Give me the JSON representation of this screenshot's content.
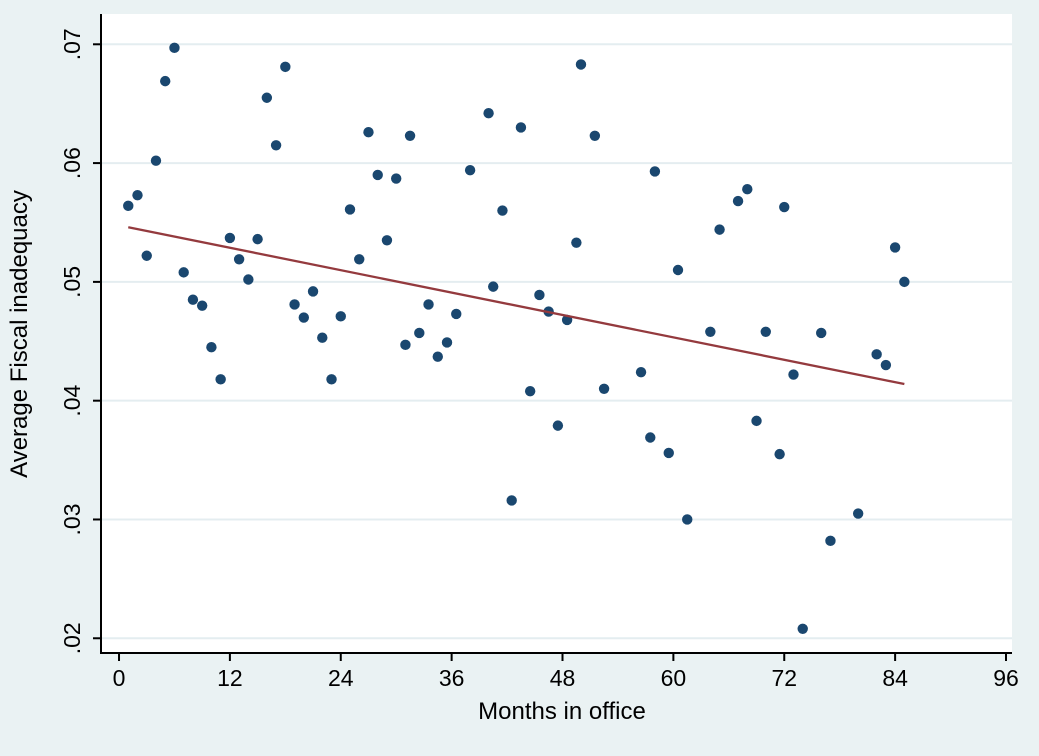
{
  "chart": {
    "xlabel": "Months in office",
    "ylabel": "Average Fiscal inadequacy"
  },
  "chart_data": {
    "type": "scatter",
    "title": "",
    "xlabel": "Months in office",
    "ylabel": "Average Fiscal inadequacy",
    "xlim": [
      -1.95,
      96.65
    ],
    "ylim": [
      0.01876,
      0.07255
    ],
    "x_ticks": [
      0,
      12,
      24,
      36,
      48,
      60,
      72,
      84,
      96
    ],
    "y_ticks": [
      0.02,
      0.03,
      0.04,
      0.05,
      0.06,
      0.07
    ],
    "y_tick_labels": [
      ".02",
      ".03",
      ".04",
      ".05",
      ".06",
      ".07"
    ],
    "grid": "horizontal-only",
    "legend": "none",
    "colors": {
      "background": "#eaf2f3",
      "plot_background": "#ffffff",
      "point": "#1a476f",
      "trend_line": "#943a3e",
      "gridline": "#e4edf0",
      "axis": "#000000"
    },
    "series": [
      {
        "name": "scatter-points",
        "type": "scatter",
        "points": [
          [
            6,
            0.0697
          ],
          [
            18,
            0.0681
          ],
          [
            5,
            0.0669
          ],
          [
            16,
            0.0655
          ],
          [
            27,
            0.0626
          ],
          [
            17,
            0.0615
          ],
          [
            4,
            0.0602
          ],
          [
            28,
            0.059
          ],
          [
            30,
            0.0587
          ],
          [
            2,
            0.0573
          ],
          [
            1,
            0.0564
          ],
          [
            25,
            0.0561
          ],
          [
            50,
            0.0683
          ],
          [
            40,
            0.0642
          ],
          [
            43.5,
            0.063
          ],
          [
            31.5,
            0.0623
          ],
          [
            51.5,
            0.0623
          ],
          [
            38,
            0.0594
          ],
          [
            58,
            0.0593
          ],
          [
            41.5,
            0.056
          ],
          [
            68,
            0.0578
          ],
          [
            67,
            0.0568
          ],
          [
            72,
            0.0563
          ],
          [
            65,
            0.0544
          ],
          [
            12,
            0.0537
          ],
          [
            15,
            0.0536
          ],
          [
            29,
            0.0535
          ],
          [
            3,
            0.0522
          ],
          [
            13,
            0.0519
          ],
          [
            26,
            0.0519
          ],
          [
            7,
            0.0508
          ],
          [
            14,
            0.0502
          ],
          [
            21,
            0.0492
          ],
          [
            8,
            0.0485
          ],
          [
            9,
            0.048
          ],
          [
            19,
            0.0481
          ],
          [
            20,
            0.047
          ],
          [
            24,
            0.0471
          ],
          [
            22,
            0.0453
          ],
          [
            10,
            0.0445
          ],
          [
            11,
            0.0418
          ],
          [
            23,
            0.0418
          ],
          [
            49.5,
            0.0533
          ],
          [
            60.5,
            0.051
          ],
          [
            40.5,
            0.0496
          ],
          [
            45.5,
            0.0489
          ],
          [
            33.5,
            0.0481
          ],
          [
            36.5,
            0.0473
          ],
          [
            46.5,
            0.0475
          ],
          [
            48.5,
            0.0468
          ],
          [
            32.5,
            0.0457
          ],
          [
            31,
            0.0447
          ],
          [
            35.5,
            0.0449
          ],
          [
            34.5,
            0.0437
          ],
          [
            56.5,
            0.0424
          ],
          [
            52.5,
            0.041
          ],
          [
            44.5,
            0.0408
          ],
          [
            47.5,
            0.0379
          ],
          [
            84,
            0.0529
          ],
          [
            85,
            0.05
          ],
          [
            64,
            0.0458
          ],
          [
            70,
            0.0458
          ],
          [
            76,
            0.0457
          ],
          [
            82,
            0.0439
          ],
          [
            83,
            0.043
          ],
          [
            73,
            0.0422
          ],
          [
            69,
            0.0383
          ],
          [
            57.5,
            0.0369
          ],
          [
            59.5,
            0.0356
          ],
          [
            42.5,
            0.0316
          ],
          [
            61.5,
            0.03
          ],
          [
            71.5,
            0.0355
          ],
          [
            80,
            0.0305
          ],
          [
            77,
            0.0282
          ],
          [
            74,
            0.0208
          ]
        ]
      },
      {
        "name": "fitted-line",
        "type": "line",
        "points": [
          [
            1,
            0.0546
          ],
          [
            85,
            0.0414
          ]
        ]
      }
    ]
  }
}
